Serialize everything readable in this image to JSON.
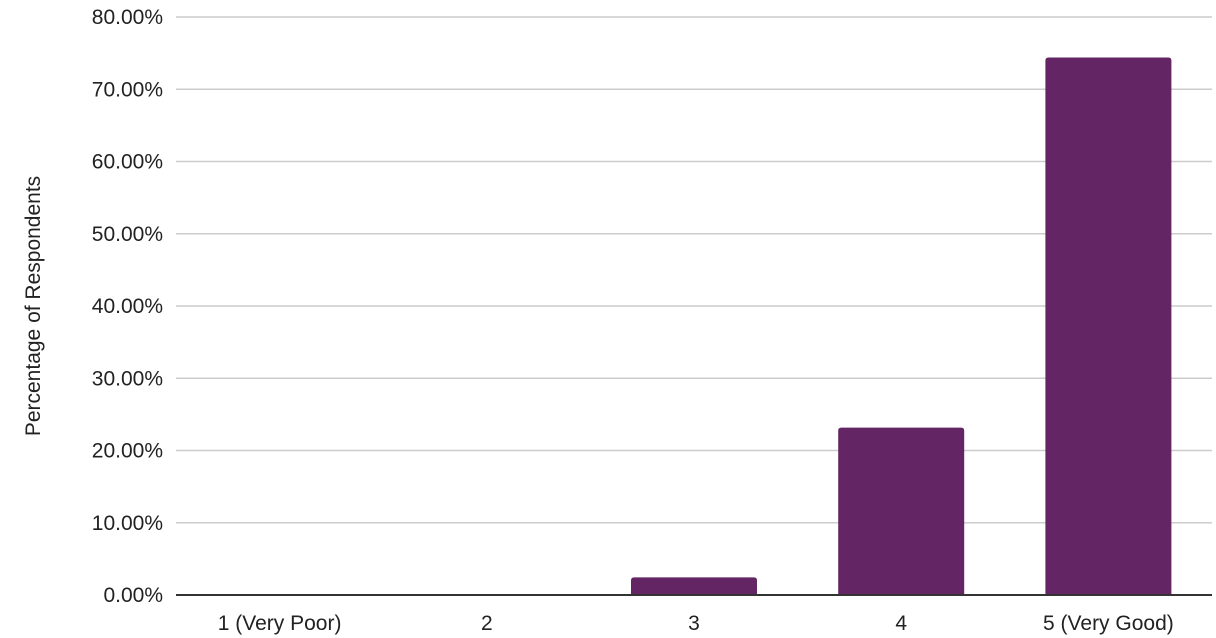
{
  "chart_data": {
    "type": "bar",
    "title": "",
    "xlabel": "",
    "ylabel": "Percentage of Respondents",
    "categories": [
      "1 (Very Poor)",
      "2",
      "3",
      "4",
      "5 (Very Good)"
    ],
    "values": [
      0,
      0,
      2.44,
      23.17,
      74.39
    ],
    "ylim": [
      0,
      80
    ],
    "yticks": [
      0,
      10,
      20,
      30,
      40,
      50,
      60,
      70,
      80
    ],
    "ytick_labels": [
      "0.00%",
      "10.00%",
      "20.00%",
      "30.00%",
      "40.00%",
      "50.00%",
      "60.00%",
      "70.00%",
      "80.00%"
    ],
    "grid": true,
    "legend": "none",
    "colors": {
      "bar": "#632563",
      "grid": "#cccccc",
      "axis": "#333333",
      "text": "#222222"
    }
  }
}
